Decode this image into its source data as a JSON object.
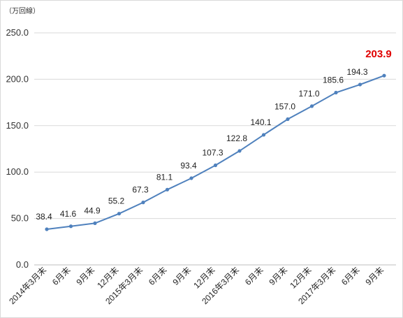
{
  "chart_data": {
    "type": "line",
    "unit_label": "（万回線）",
    "categories": [
      "2014年3月末",
      "6月末",
      "9月末",
      "12月末",
      "2015年3月末",
      "6月末",
      "9月末",
      "12月末",
      "2016年3月末",
      "6月末",
      "9月末",
      "12月末",
      "2017年3月末",
      "6月末",
      "9月末"
    ],
    "values": [
      38.4,
      41.6,
      44.9,
      55.2,
      67.3,
      81.1,
      93.4,
      107.3,
      122.8,
      140.1,
      157.0,
      171.0,
      185.6,
      194.3,
      203.9
    ],
    "data_labels": [
      "38.4",
      "41.6",
      "44.9",
      "55.2",
      "67.3",
      "81.1",
      "93.4",
      "107.3",
      "122.8",
      "140.1",
      "157.0",
      "171.0",
      "185.6",
      "194.3",
      "203.9"
    ],
    "highlight_index": 14,
    "ylim": [
      0,
      250
    ],
    "yticks": [
      "0.0",
      "50.0",
      "100.0",
      "150.0",
      "200.0",
      "250.0"
    ],
    "grid": true,
    "colors": {
      "line": "#4f81bd",
      "grid": "#d9d9d9",
      "highlight": "#e00000"
    }
  }
}
